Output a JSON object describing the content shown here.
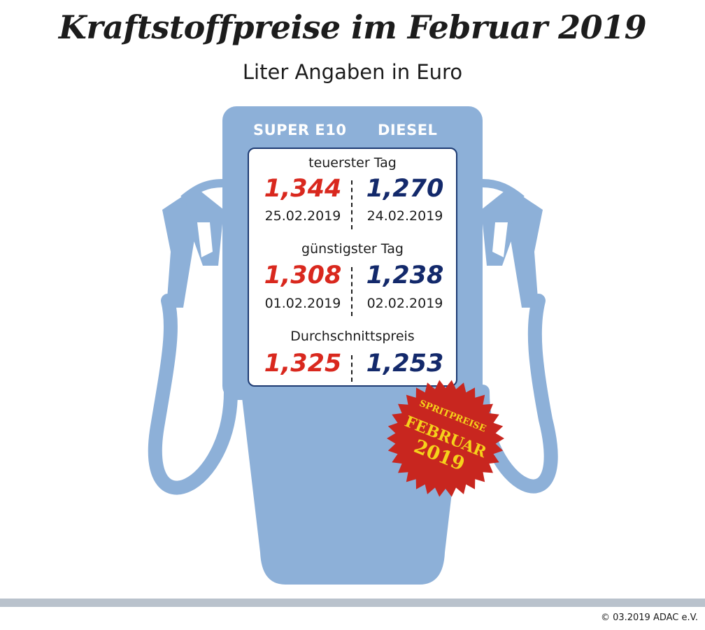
{
  "header": {
    "title": "Kraftstoffpreise im Februar 2019",
    "subtitle": "Liter Angaben in Euro"
  },
  "columns": {
    "super": "SUPER E10",
    "diesel": "DIESEL"
  },
  "sections": [
    {
      "label": "teuerster Tag",
      "super_price": "1,344",
      "super_date": "25.02.2019",
      "diesel_price": "1,270",
      "diesel_date": "24.02.2019"
    },
    {
      "label": "günstigster Tag",
      "super_price": "1,308",
      "super_date": "01.02.2019",
      "diesel_price": "1,238",
      "diesel_date": "02.02.2019"
    },
    {
      "label": "Durchschnittspreis",
      "super_price": "1,325",
      "diesel_price": "1,253"
    }
  ],
  "stamp": {
    "line1": "SPRITPREISE",
    "line2": "FEBRUAR",
    "line3": "2019"
  },
  "colors": {
    "pump": "#8db0d8",
    "super": "#d9281e",
    "diesel": "#13296b",
    "stamp": "#c8261f",
    "stamp_text": "#f5d21b"
  },
  "footer": {
    "copyright": "© 03.2019 ADAC e.V."
  }
}
